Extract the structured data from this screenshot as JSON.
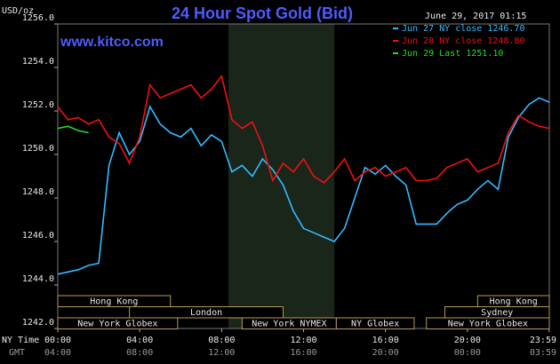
{
  "chart_data": {
    "type": "line",
    "title": "24 Hour Spot Gold (Bid)",
    "website": "www.kitco.com",
    "y_label": "USD/oz",
    "timestamp": "June 29, 2017 01:15",
    "x_row_label": "NY Time",
    "x2_row_label": "GMT",
    "xlim": [
      0,
      24
    ],
    "xticks": [
      {
        "value": 0,
        "label": "00:00"
      },
      {
        "value": 4,
        "label": "04:00"
      },
      {
        "value": 8,
        "label": "08:00"
      },
      {
        "value": 12,
        "label": "12:00"
      },
      {
        "value": 16,
        "label": "16:00"
      },
      {
        "value": 20,
        "label": "20:00"
      },
      {
        "value": 23.983,
        "label": "23:59"
      }
    ],
    "x2tick_labels": [
      "04:00",
      "08:00",
      "12:00",
      "16:00",
      "20:00",
      "00:00",
      "03:59"
    ],
    "ylim": [
      1242,
      1256
    ],
    "yticks": [
      {
        "value": 1242,
        "label": "1242.0"
      },
      {
        "value": 1244,
        "label": "1244.0"
      },
      {
        "value": 1246,
        "label": "1246.0"
      },
      {
        "value": 1248,
        "label": "1248.0"
      },
      {
        "value": 1250,
        "label": "1250.0"
      },
      {
        "value": 1252,
        "label": "1252.0"
      },
      {
        "value": 1254,
        "label": "1254.0"
      },
      {
        "value": 1256,
        "label": "1256.0"
      }
    ],
    "shaded_hours": [
      8.33,
      13.5
    ],
    "sessions": [
      {
        "label": "Hong Kong",
        "start": 0,
        "end": 5.5
      },
      {
        "label": "London",
        "start": 3.5,
        "end": 11
      },
      {
        "label": "New York Globex",
        "start": 0,
        "end": 5.85
      },
      {
        "label": "New York NYMEX",
        "start": 9,
        "end": 13.6
      },
      {
        "label": "NY Globex",
        "start": 13.6,
        "end": 17.4
      },
      {
        "label": "Sydney",
        "start": 18.9,
        "end": 24
      },
      {
        "label": "Hong Kong",
        "start": 20.5,
        "end": 24
      },
      {
        "label": "New York Globex",
        "start": 18,
        "end": 24
      }
    ],
    "x": [
      0,
      0.5,
      1,
      1.5,
      2,
      2.5,
      3,
      3.5,
      4,
      4.5,
      5,
      5.5,
      6,
      6.5,
      7,
      7.5,
      8,
      8.5,
      9,
      9.5,
      10,
      10.5,
      11,
      11.5,
      12,
      12.5,
      13,
      13.5,
      14,
      14.5,
      15,
      15.5,
      16,
      16.5,
      17,
      17.5,
      18,
      18.5,
      19,
      19.5,
      20,
      20.5,
      21,
      21.5,
      22,
      22.5,
      23,
      23.5,
      24
    ],
    "series": [
      {
        "name": "Jun 27 NY close 1246.70",
        "color": "#33bbff",
        "values": [
          1244.5,
          1244.6,
          1244.7,
          1244.9,
          1245.0,
          1249.5,
          1251.0,
          1250.0,
          1250.6,
          1252.2,
          1251.4,
          1251.0,
          1250.8,
          1251.2,
          1250.4,
          1250.9,
          1250.6,
          1249.2,
          1249.5,
          1249.0,
          1249.8,
          1249.3,
          1248.6,
          1247.4,
          1246.6,
          1246.4,
          1246.2,
          1246.0,
          1246.6,
          1248.0,
          1249.4,
          1249.1,
          1249.5,
          1249.0,
          1248.6,
          1246.8,
          1246.8,
          1246.8,
          1247.3,
          1247.7,
          1247.9,
          1248.4,
          1248.8,
          1248.4,
          1250.8,
          1251.7,
          1252.3,
          1252.6,
          1252.4
        ]
      },
      {
        "name": "Jun 28 NY close 1248.80",
        "color": "#ee1111",
        "values": [
          1252.2,
          1251.6,
          1251.7,
          1251.4,
          1251.6,
          1250.8,
          1250.5,
          1249.6,
          1250.8,
          1253.2,
          1252.6,
          1252.8,
          1253.0,
          1253.2,
          1252.6,
          1253.0,
          1253.6,
          1251.6,
          1251.2,
          1251.5,
          1250.4,
          1248.8,
          1249.6,
          1249.2,
          1249.8,
          1249.0,
          1248.7,
          1249.2,
          1249.8,
          1248.8,
          1249.2,
          1249.4,
          1249.0,
          1249.2,
          1249.4,
          1248.8,
          1248.8,
          1248.9,
          1249.4,
          1249.6,
          1249.8,
          1249.2,
          1249.4,
          1249.6,
          1251.0,
          1251.8,
          1251.5,
          1251.3,
          1251.2
        ]
      },
      {
        "name": "Jun 29 Last 1251.10",
        "color": "#22dd22",
        "values": [
          1251.2,
          1251.3,
          1251.1,
          1251.0,
          null,
          null,
          null,
          null,
          null,
          null,
          null,
          null,
          null,
          null,
          null,
          null,
          null,
          null,
          null,
          null,
          null,
          null,
          null,
          null,
          null,
          null,
          null,
          null,
          null,
          null,
          null,
          null,
          null,
          null,
          null,
          null,
          null,
          null,
          null,
          null,
          null,
          null,
          null,
          null,
          null,
          null,
          null,
          null,
          null
        ]
      }
    ]
  }
}
